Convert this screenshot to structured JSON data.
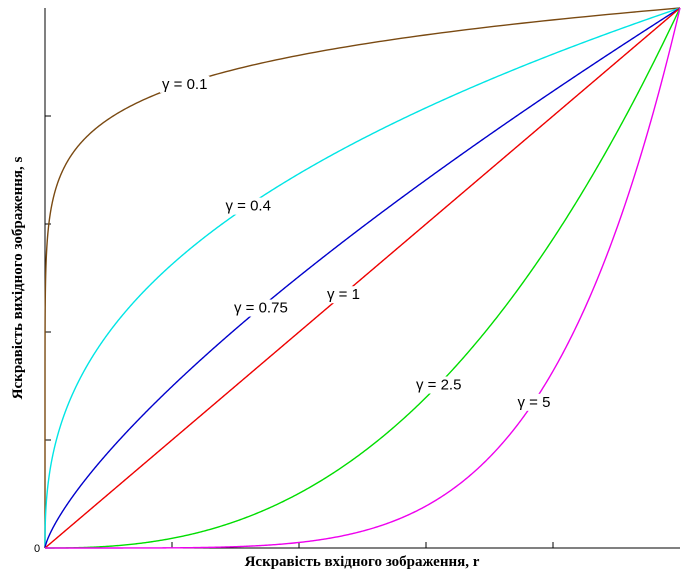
{
  "chart_data": {
    "type": "line",
    "title": "",
    "xlabel": "Яскравість вхідного зображення, r",
    "ylabel": "Яскравість вихідного зображення, s",
    "xlim": [
      0,
      1
    ],
    "ylim": [
      0,
      1
    ],
    "origin_label": "0",
    "grid": false,
    "legend": "none",
    "series": [
      {
        "gamma": 0.1,
        "label": "γ = 0.1",
        "color": "#7a4a12"
      },
      {
        "gamma": 0.4,
        "label": "γ = 0.4",
        "color": "#00e5e5"
      },
      {
        "gamma": 0.75,
        "label": "γ = 0.75",
        "color": "#0000cc"
      },
      {
        "gamma": 1,
        "label": "γ = 1",
        "color": "#ee0000"
      },
      {
        "gamma": 2.5,
        "label": "γ = 2.5",
        "color": "#00dd00"
      },
      {
        "gamma": 5,
        "label": "γ = 5",
        "color": "#ee00ee"
      }
    ]
  }
}
